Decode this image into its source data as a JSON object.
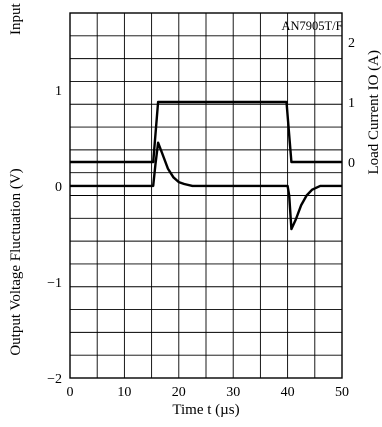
{
  "chart_data": {
    "type": "line",
    "title": "AN7905T/F",
    "xlabel": "Time  t (µs)",
    "xlim": [
      0,
      50
    ],
    "x_ticks": [
      "0",
      "10",
      "20",
      "30",
      "40",
      "50"
    ],
    "grid": true,
    "left_axis": {
      "label": "Output Voltage Fluctuation (V)",
      "ylim": [
        -2,
        1.8
      ],
      "ticks": [
        "1",
        "0",
        "−1",
        "−2"
      ]
    },
    "right_axis": {
      "label": "Load Current  IO (A)",
      "ticks": [
        "2",
        "1",
        "0"
      ]
    },
    "left_axis_top_fragment": "Input Voltage  VI (V)",
    "series": [
      {
        "role": "load-current",
        "points": [
          [
            0,
            0
          ],
          [
            15.3,
            0
          ],
          [
            16.2,
            1
          ],
          [
            39.8,
            1
          ],
          [
            40.7,
            0
          ],
          [
            50,
            0
          ]
        ]
      },
      {
        "role": "output-voltage-fluctuation",
        "points": [
          [
            0,
            0
          ],
          [
            15.3,
            0
          ],
          [
            15.7,
            0.22
          ],
          [
            16.2,
            0.45
          ],
          [
            17,
            0.33
          ],
          [
            18,
            0.18
          ],
          [
            19,
            0.09
          ],
          [
            20,
            0.04
          ],
          [
            21,
            0.02
          ],
          [
            22.5,
            0
          ],
          [
            40,
            0
          ],
          [
            40.3,
            -0.1
          ],
          [
            40.7,
            -0.45
          ],
          [
            41.5,
            -0.35
          ],
          [
            42.5,
            -0.2
          ],
          [
            43.5,
            -0.1
          ],
          [
            44.5,
            -0.04
          ],
          [
            46,
            0
          ],
          [
            50,
            0
          ]
        ]
      }
    ]
  }
}
